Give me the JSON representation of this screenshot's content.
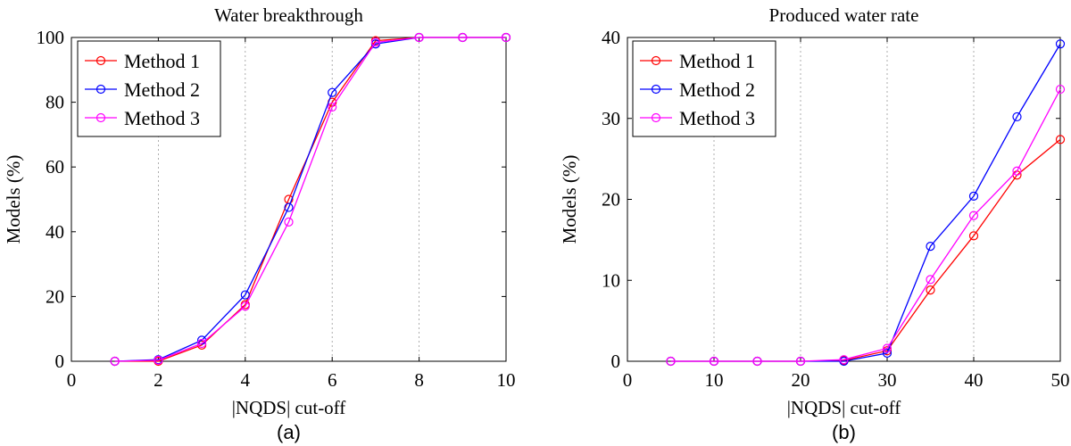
{
  "chart_data": [
    {
      "type": "line",
      "title": "Water breakthrough",
      "xlabel": "|NQDS| cut-off",
      "ylabel": "Models (%)",
      "panel_label": "(a)",
      "xlim": [
        0,
        10
      ],
      "ylim": [
        0,
        100
      ],
      "xticks": [
        0,
        2,
        4,
        6,
        8,
        10
      ],
      "yticks": [
        0,
        20,
        40,
        60,
        80,
        100
      ],
      "grid": "vertical dotted",
      "legend_position": "top-left",
      "x": [
        1,
        2,
        3,
        4,
        5,
        6,
        7,
        8,
        9,
        10
      ],
      "series": [
        {
          "name": "Method 1",
          "color": "#ff0000",
          "values": [
            0,
            0,
            5,
            17.5,
            50,
            80,
            99,
            100,
            100,
            100
          ]
        },
        {
          "name": "Method 2",
          "color": "#0000ff",
          "values": [
            0,
            0.5,
            6.5,
            20.5,
            47.5,
            83,
            98,
            100,
            100,
            100
          ]
        },
        {
          "name": "Method 3",
          "color": "#ff00ff",
          "values": [
            0,
            0.3,
            5.5,
            17,
            43,
            78.5,
            98.5,
            100,
            100,
            100
          ]
        }
      ]
    },
    {
      "type": "line",
      "title": "Produced water rate",
      "xlabel": "|NQDS| cut-off",
      "ylabel": "Models (%)",
      "panel_label": "(b)",
      "xlim": [
        0,
        50
      ],
      "ylim": [
        0,
        40
      ],
      "xticks": [
        0,
        10,
        20,
        30,
        40,
        50
      ],
      "yticks": [
        0,
        10,
        20,
        30,
        40
      ],
      "grid": "vertical dotted",
      "legend_position": "top-left",
      "x": [
        5,
        10,
        15,
        20,
        25,
        30,
        35,
        40,
        45,
        50
      ],
      "series": [
        {
          "name": "Method 1",
          "color": "#ff0000",
          "values": [
            0,
            0,
            0,
            0,
            0.1,
            1.3,
            8.8,
            15.5,
            23,
            27.4
          ]
        },
        {
          "name": "Method 2",
          "color": "#0000ff",
          "values": [
            0,
            0,
            0,
            0,
            0,
            1,
            14.2,
            20.4,
            30.2,
            39.2
          ]
        },
        {
          "name": "Method 3",
          "color": "#ff00ff",
          "values": [
            0,
            0,
            0,
            0,
            0.2,
            1.6,
            10.1,
            18,
            23.5,
            33.6
          ]
        }
      ]
    }
  ]
}
